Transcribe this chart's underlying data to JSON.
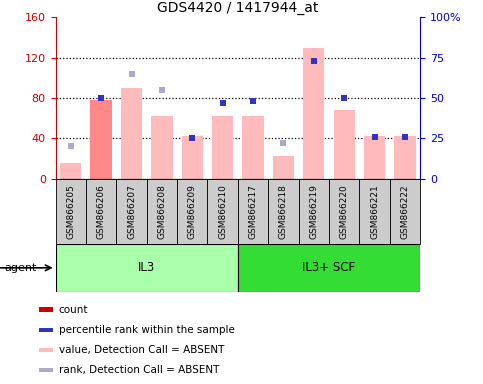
{
  "title": "GDS4420 / 1417944_at",
  "samples": [
    "GSM866205",
    "GSM866206",
    "GSM866207",
    "GSM866208",
    "GSM866209",
    "GSM866210",
    "GSM866217",
    "GSM866218",
    "GSM866219",
    "GSM866220",
    "GSM866221",
    "GSM866222"
  ],
  "groups": [
    {
      "label": "IL3",
      "start": 0,
      "end": 6,
      "color": "#AAFFAA"
    },
    {
      "label": "IL3+ SCF",
      "start": 6,
      "end": 12,
      "color": "#33DD33"
    }
  ],
  "bar_values": [
    15,
    78,
    90,
    62,
    42,
    62,
    62,
    22,
    130,
    68,
    42,
    42
  ],
  "bar_absent": [
    true,
    false,
    true,
    true,
    true,
    true,
    true,
    true,
    true,
    true,
    true,
    true
  ],
  "rank_values": [
    20,
    50,
    65,
    55,
    25,
    47,
    48,
    22,
    73,
    50,
    26,
    26
  ],
  "rank_absent": [
    true,
    false,
    true,
    true,
    false,
    false,
    false,
    true,
    false,
    false,
    false,
    false
  ],
  "ylim_left": [
    0,
    160
  ],
  "ylim_right": [
    0,
    100
  ],
  "yticks_left": [
    0,
    40,
    80,
    120,
    160
  ],
  "yticks_right": [
    0,
    25,
    50,
    75,
    100
  ],
  "yticklabels_left": [
    "0",
    "40",
    "80",
    "120",
    "160"
  ],
  "yticklabels_right": [
    "0",
    "25",
    "50",
    "75",
    "100%"
  ],
  "dotted_lines": [
    40,
    80,
    120
  ],
  "color_present_bar": "#FF8888",
  "color_absent_bar": "#FFBBBB",
  "color_present_rank": "#3333BB",
  "color_absent_rank": "#AAAACC",
  "agent_label": "agent",
  "bg_color": "#FFFFFF",
  "left_axis_color": "#CC0000",
  "right_axis_color": "#0000CC",
  "legend_colors": [
    "#CC0000",
    "#3333BB",
    "#FFBBBB",
    "#AAAACC"
  ],
  "legend_texts": [
    "count",
    "percentile rank within the sample",
    "value, Detection Call = ABSENT",
    "rank, Detection Call = ABSENT"
  ]
}
